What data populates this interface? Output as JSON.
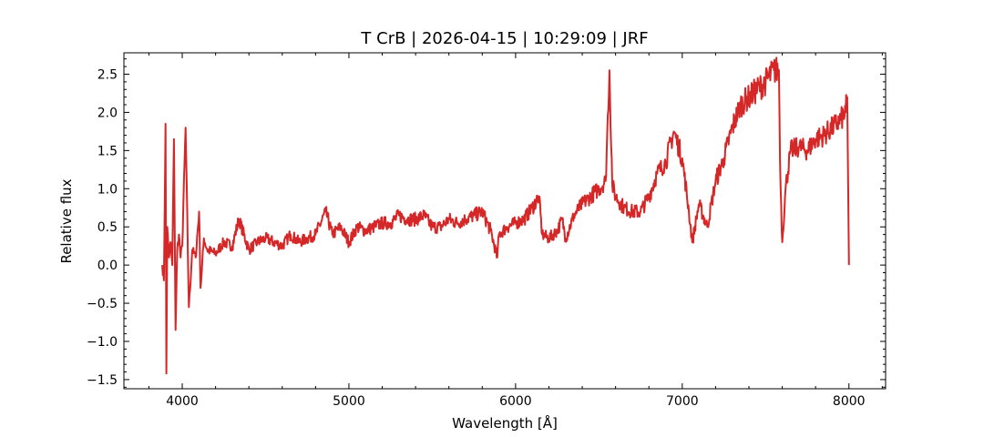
{
  "chart_data": {
    "type": "line",
    "title": "T CrB | 2026-04-15 | 10:29:09 | JRF",
    "xlabel": "Wavelength [Å]",
    "ylabel": "Relative flux",
    "xlim": [
      3650,
      8220
    ],
    "ylim": [
      -1.62,
      2.78
    ],
    "xticks": [
      4000,
      5000,
      6000,
      7000,
      8000
    ],
    "xtick_labels": [
      "4000",
      "5000",
      "6000",
      "7000",
      "8000"
    ],
    "yticks": [
      -1.5,
      -1.0,
      -0.5,
      0.0,
      0.5,
      1.0,
      1.5,
      2.0,
      2.5
    ],
    "ytick_labels": [
      "−1.5",
      "−1.0",
      "−0.5",
      "0.0",
      "0.5",
      "1.0",
      "1.5",
      "2.0",
      "2.5"
    ],
    "minor_ticks": true,
    "tick_direction": "in",
    "grid": false,
    "color": "#d62728",
    "series": [
      {
        "x": [
          3880,
          3890,
          3900,
          3905,
          3910,
          3920,
          3930,
          3940,
          3950,
          3960,
          3970,
          3980,
          3990,
          4000,
          4020,
          4040,
          4060,
          4080,
          4101,
          4110,
          4130,
          4150,
          4200,
          4250,
          4300,
          4340,
          4400,
          4450,
          4500,
          4550,
          4600,
          4650,
          4700,
          4750,
          4800,
          4861,
          4900,
          4950,
          5000,
          5050,
          5100,
          5150,
          5200,
          5250,
          5300,
          5350,
          5400,
          5450,
          5500,
          5550,
          5600,
          5650,
          5700,
          5750,
          5800,
          5850,
          5890,
          5900,
          5950,
          6000,
          6050,
          6100,
          6140,
          6160,
          6200,
          6250,
          6280,
          6300,
          6350,
          6400,
          6450,
          6500,
          6540,
          6563,
          6580,
          6600,
          6650,
          6700,
          6750,
          6800,
          6850,
          6900,
          6950,
          7000,
          7040,
          7060,
          7100,
          7150,
          7200,
          7250,
          7300,
          7350,
          7400,
          7450,
          7500,
          7550,
          7580,
          7590,
          7600,
          7620,
          7650,
          7700,
          7750,
          7800,
          7850,
          7900,
          7950,
          7980,
          7990,
          8000
        ],
        "y": [
          0.0,
          -0.2,
          1.85,
          -1.42,
          0.5,
          0.1,
          0.3,
          0.0,
          1.65,
          -0.85,
          0.2,
          0.4,
          0.1,
          0.25,
          1.8,
          -0.55,
          0.2,
          0.1,
          0.7,
          -0.3,
          0.35,
          0.2,
          0.15,
          0.3,
          0.25,
          0.6,
          0.2,
          0.3,
          0.35,
          0.3,
          0.25,
          0.4,
          0.3,
          0.35,
          0.4,
          0.7,
          0.4,
          0.5,
          0.3,
          0.5,
          0.45,
          0.5,
          0.55,
          0.55,
          0.65,
          0.6,
          0.6,
          0.65,
          0.5,
          0.5,
          0.6,
          0.55,
          0.6,
          0.65,
          0.7,
          0.45,
          0.1,
          0.4,
          0.5,
          0.55,
          0.6,
          0.75,
          0.9,
          0.4,
          0.35,
          0.45,
          0.6,
          0.35,
          0.65,
          0.8,
          0.9,
          1.0,
          1.1,
          2.55,
          1.05,
          0.9,
          0.75,
          0.7,
          0.7,
          0.9,
          1.2,
          1.35,
          1.75,
          1.4,
          0.7,
          0.3,
          0.8,
          0.5,
          1.1,
          1.4,
          1.8,
          2.1,
          2.2,
          2.3,
          2.4,
          2.55,
          2.55,
          1.0,
          0.3,
          1.0,
          1.5,
          1.55,
          1.5,
          1.65,
          1.7,
          1.8,
          1.9,
          2.0,
          2.2,
          0.0
        ]
      }
    ]
  }
}
